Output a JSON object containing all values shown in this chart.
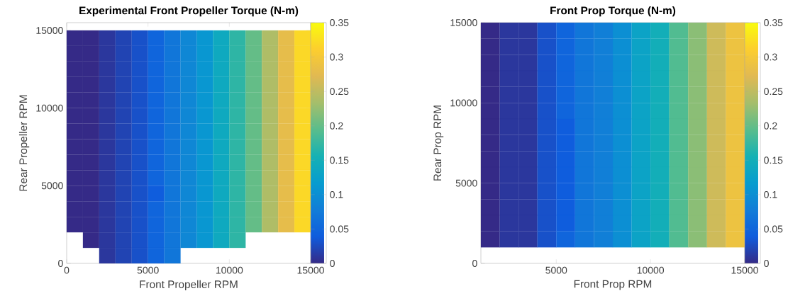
{
  "chart_data": [
    {
      "type": "scatter",
      "title": "Experimental Front Propeller Torque (N-m)",
      "xlabel": "Front Propeller RPM",
      "ylabel": "Rear Propeller RPM",
      "marker": "square",
      "x": [
        500,
        1500,
        2500,
        3500,
        4500,
        5500,
        6500,
        7500,
        8500,
        9500,
        10500,
        11500,
        12500,
        13500,
        14500,
        500,
        1500,
        2500,
        3500,
        4500,
        5500,
        6500,
        7500,
        8500,
        9500,
        10500,
        11500,
        12500,
        13500,
        14500,
        500,
        1500,
        2500,
        3500,
        4500,
        5500,
        6500,
        7500,
        8500,
        9500,
        10500,
        11500,
        12500,
        13500,
        14500,
        500,
        1500,
        2500,
        3500,
        4500,
        5500,
        6500,
        7500,
        8500,
        9500,
        10500,
        11500,
        12500,
        13500,
        14500,
        500,
        1500,
        2500,
        3500,
        4500,
        5500,
        6500,
        7500,
        8500,
        9500,
        10500,
        11500,
        12500,
        13500,
        14500,
        500,
        1500,
        2500,
        3500,
        4500,
        5500,
        6500,
        7500,
        8500,
        9500,
        10500,
        11500,
        12500,
        13500,
        14500,
        500,
        1500,
        2500,
        3500,
        4500,
        5500,
        6500,
        7500,
        8500,
        9500,
        10500,
        11500,
        12500,
        13500,
        14500,
        500,
        1500,
        2500,
        3500,
        4500,
        5500,
        6500,
        7500,
        8500,
        9500,
        10500,
        11500,
        12500,
        13500,
        14500,
        500,
        1500,
        2500,
        3500,
        4500,
        5500,
        6500,
        7500,
        8500,
        9500,
        10500,
        11500,
        12500,
        13500,
        14500,
        500,
        1500,
        2500,
        3500,
        4500,
        5500,
        6500,
        7500,
        8500,
        9500,
        10500,
        11500,
        12500,
        13500,
        14500,
        500,
        1500,
        2500,
        3500,
        4500,
        5500,
        6500,
        7500,
        8500,
        9500,
        10500,
        11500,
        12500,
        13500,
        14500,
        500,
        1500,
        2500,
        3500,
        4500,
        5500,
        6500,
        7500,
        8500,
        9500,
        10500,
        11500,
        12500,
        13500,
        14500,
        500,
        1500,
        2500,
        3500,
        4500,
        5500,
        6500,
        7500,
        8500,
        9500,
        10500,
        11500,
        12500,
        13500,
        14500,
        1500,
        2500,
        3500,
        4500,
        5500,
        6500,
        7500,
        8500,
        9500,
        10500,
        2500,
        3500,
        4500,
        5500,
        6500
      ],
      "values": [
        14500,
        14500,
        14500,
        14500,
        14500,
        14500,
        14500,
        14500,
        14500,
        14500,
        14500,
        14500,
        14500,
        14500,
        14500,
        13500,
        13500,
        13500,
        13500,
        13500,
        13500,
        13500,
        13500,
        13500,
        13500,
        13500,
        13500,
        13500,
        13500,
        13500,
        12500,
        12500,
        12500,
        12500,
        12500,
        12500,
        12500,
        12500,
        12500,
        12500,
        12500,
        12500,
        12500,
        12500,
        12500,
        11500,
        11500,
        11500,
        11500,
        11500,
        11500,
        11500,
        11500,
        11500,
        11500,
        11500,
        11500,
        11500,
        11500,
        11500,
        10500,
        10500,
        10500,
        10500,
        10500,
        10500,
        10500,
        10500,
        10500,
        10500,
        10500,
        10500,
        10500,
        10500,
        10500,
        9500,
        9500,
        9500,
        9500,
        9500,
        9500,
        9500,
        9500,
        9500,
        9500,
        9500,
        9500,
        9500,
        9500,
        9500,
        8500,
        8500,
        8500,
        8500,
        8500,
        8500,
        8500,
        8500,
        8500,
        8500,
        8500,
        8500,
        8500,
        8500,
        8500,
        7500,
        7500,
        7500,
        7500,
        7500,
        7500,
        7500,
        7500,
        7500,
        7500,
        7500,
        7500,
        7500,
        7500,
        7500,
        6500,
        6500,
        6500,
        6500,
        6500,
        6500,
        6500,
        6500,
        6500,
        6500,
        6500,
        6500,
        6500,
        6500,
        6500,
        5500,
        5500,
        5500,
        5500,
        5500,
        5500,
        5500,
        5500,
        5500,
        5500,
        5500,
        5500,
        5500,
        5500,
        5500,
        4500,
        4500,
        4500,
        4500,
        4500,
        4500,
        4500,
        4500,
        4500,
        4500,
        4500,
        4500,
        4500,
        4500,
        4500,
        3500,
        3500,
        3500,
        3500,
        3500,
        3500,
        3500,
        3500,
        3500,
        3500,
        3500,
        3500,
        3500,
        3500,
        3500,
        2500,
        2500,
        2500,
        2500,
        2500,
        2500,
        2500,
        2500,
        2500,
        2500,
        2500,
        2500,
        2500,
        2500,
        2500,
        1500,
        1500,
        1500,
        1500,
        1500,
        1500,
        1500,
        1500,
        1500,
        1500,
        500,
        500,
        500,
        500,
        500
      ],
      "cvalues": [
        0.0,
        0.0,
        0.01,
        0.02,
        0.03,
        0.05,
        0.07,
        0.09,
        0.11,
        0.14,
        0.17,
        0.2,
        0.24,
        0.28,
        0.32,
        0.0,
        0.0,
        0.01,
        0.02,
        0.03,
        0.05,
        0.07,
        0.09,
        0.11,
        0.14,
        0.17,
        0.2,
        0.24,
        0.28,
        0.32,
        0.0,
        0.0,
        0.01,
        0.02,
        0.03,
        0.05,
        0.07,
        0.09,
        0.11,
        0.14,
        0.17,
        0.2,
        0.24,
        0.28,
        0.32,
        0.0,
        0.0,
        0.01,
        0.02,
        0.03,
        0.05,
        0.07,
        0.09,
        0.11,
        0.14,
        0.17,
        0.2,
        0.24,
        0.28,
        0.32,
        0.0,
        0.0,
        0.01,
        0.02,
        0.03,
        0.05,
        0.07,
        0.09,
        0.11,
        0.14,
        0.17,
        0.2,
        0.24,
        0.28,
        0.32,
        0.0,
        0.0,
        0.01,
        0.02,
        0.03,
        0.05,
        0.07,
        0.09,
        0.11,
        0.14,
        0.17,
        0.2,
        0.24,
        0.28,
        0.32,
        0.0,
        0.0,
        0.01,
        0.02,
        0.03,
        0.05,
        0.07,
        0.09,
        0.11,
        0.14,
        0.17,
        0.2,
        0.24,
        0.28,
        0.32,
        0.0,
        0.0,
        0.01,
        0.02,
        0.03,
        0.05,
        0.07,
        0.09,
        0.11,
        0.14,
        0.17,
        0.2,
        0.24,
        0.28,
        0.32,
        0.0,
        0.0,
        0.01,
        0.02,
        0.03,
        0.05,
        0.07,
        0.09,
        0.11,
        0.14,
        0.17,
        0.2,
        0.24,
        0.28,
        0.32,
        0.0,
        0.0,
        0.01,
        0.02,
        0.03,
        0.05,
        0.07,
        0.09,
        0.11,
        0.14,
        0.17,
        0.2,
        0.24,
        0.28,
        0.32,
        0.0,
        0.0,
        0.01,
        0.02,
        0.03,
        0.04,
        0.07,
        0.09,
        0.11,
        0.14,
        0.17,
        0.2,
        0.24,
        0.28,
        0.32,
        0.0,
        0.0,
        0.01,
        0.02,
        0.03,
        0.05,
        0.07,
        0.09,
        0.11,
        0.14,
        0.17,
        0.2,
        0.24,
        0.28,
        0.32,
        0.0,
        0.0,
        0.01,
        0.02,
        0.03,
        0.05,
        0.07,
        0.09,
        0.11,
        0.14,
        0.17,
        0.2,
        0.24,
        0.28,
        0.32,
        0.0,
        0.01,
        0.02,
        0.03,
        0.05,
        0.07,
        0.09,
        0.11,
        0.14,
        0.17,
        0.01,
        0.02,
        0.03,
        0.05,
        0.07
      ],
      "xlim": [
        0,
        15000
      ],
      "ylim": [
        0,
        15500
      ],
      "xticks": [
        0,
        5000,
        10000,
        15000
      ],
      "yticks": [
        0,
        5000,
        10000,
        15000
      ],
      "clim": [
        0,
        0.35
      ],
      "cticks": [
        0,
        0.05,
        0.1,
        0.15,
        0.2,
        0.25,
        0.3,
        0.35
      ]
    },
    {
      "type": "scatter",
      "title": "Front Prop Torque (N-m)",
      "xlabel": "Front Prop RPM",
      "ylabel": "Rear Prop RPM",
      "marker": "square",
      "x": [
        1500,
        2500,
        3500,
        4500,
        5500,
        6500,
        7500,
        8500,
        9500,
        10500,
        11500,
        12500,
        13500,
        14500,
        1500,
        2500,
        3500,
        4500,
        5500,
        6500,
        7500,
        8500,
        9500,
        10500,
        11500,
        12500,
        13500,
        14500,
        1500,
        2500,
        3500,
        4500,
        5500,
        6500,
        7500,
        8500,
        9500,
        10500,
        11500,
        12500,
        13500,
        14500,
        1500,
        2500,
        3500,
        4500,
        5500,
        6500,
        7500,
        8500,
        9500,
        10500,
        11500,
        12500,
        13500,
        14500,
        1500,
        2500,
        3500,
        4500,
        5500,
        6500,
        7500,
        8500,
        9500,
        10500,
        11500,
        12500,
        13500,
        14500,
        1500,
        2500,
        3500,
        4500,
        5500,
        6500,
        7500,
        8500,
        9500,
        10500,
        11500,
        12500,
        13500,
        14500,
        1500,
        2500,
        3500,
        4500,
        5500,
        6500,
        7500,
        8500,
        9500,
        10500,
        11500,
        12500,
        13500,
        14500,
        1500,
        2500,
        3500,
        4500,
        5500,
        6500,
        7500,
        8500,
        9500,
        10500,
        11500,
        12500,
        13500,
        14500,
        1500,
        2500,
        3500,
        4500,
        5500,
        6500,
        7500,
        8500,
        9500,
        10500,
        11500,
        12500,
        13500,
        14500,
        1500,
        2500,
        3500,
        4500,
        5500,
        6500,
        7500,
        8500,
        9500,
        10500,
        11500,
        12500,
        13500,
        14500,
        1500,
        2500,
        3500,
        4500,
        5500,
        6500,
        7500,
        8500,
        9500,
        10500,
        11500,
        12500,
        13500,
        14500,
        1500,
        2500,
        3500,
        4500,
        5500,
        6500,
        7500,
        8500,
        9500,
        10500,
        11500,
        12500,
        13500,
        14500,
        1500,
        2500,
        3500,
        4500,
        5500,
        6500,
        7500,
        8500,
        9500,
        10500,
        11500,
        12500,
        13500,
        14500,
        1500,
        2500,
        3500,
        4500,
        5500,
        6500,
        7500,
        8500,
        9500,
        10500,
        11500,
        12500,
        13500,
        14500
      ],
      "values": [
        14500,
        14500,
        14500,
        14500,
        14500,
        14500,
        14500,
        14500,
        14500,
        14500,
        14500,
        14500,
        14500,
        14500,
        13500,
        13500,
        13500,
        13500,
        13500,
        13500,
        13500,
        13500,
        13500,
        13500,
        13500,
        13500,
        13500,
        13500,
        12500,
        12500,
        12500,
        12500,
        12500,
        12500,
        12500,
        12500,
        12500,
        12500,
        12500,
        12500,
        12500,
        12500,
        11500,
        11500,
        11500,
        11500,
        11500,
        11500,
        11500,
        11500,
        11500,
        11500,
        11500,
        11500,
        11500,
        11500,
        10500,
        10500,
        10500,
        10500,
        10500,
        10500,
        10500,
        10500,
        10500,
        10500,
        10500,
        10500,
        10500,
        10500,
        9500,
        9500,
        9500,
        9500,
        9500,
        9500,
        9500,
        9500,
        9500,
        9500,
        9500,
        9500,
        9500,
        9500,
        8500,
        8500,
        8500,
        8500,
        8500,
        8500,
        8500,
        8500,
        8500,
        8500,
        8500,
        8500,
        8500,
        8500,
        7500,
        7500,
        7500,
        7500,
        7500,
        7500,
        7500,
        7500,
        7500,
        7500,
        7500,
        7500,
        7500,
        7500,
        6500,
        6500,
        6500,
        6500,
        6500,
        6500,
        6500,
        6500,
        6500,
        6500,
        6500,
        6500,
        6500,
        6500,
        5500,
        5500,
        5500,
        5500,
        5500,
        5500,
        5500,
        5500,
        5500,
        5500,
        5500,
        5500,
        5500,
        5500,
        4500,
        4500,
        4500,
        4500,
        4500,
        4500,
        4500,
        4500,
        4500,
        4500,
        4500,
        4500,
        4500,
        4500,
        3500,
        3500,
        3500,
        3500,
        3500,
        3500,
        3500,
        3500,
        3500,
        3500,
        3500,
        3500,
        3500,
        3500,
        2500,
        2500,
        2500,
        2500,
        2500,
        2500,
        2500,
        2500,
        2500,
        2500,
        2500,
        2500,
        2500,
        2500,
        1500,
        1500,
        1500,
        1500,
        1500,
        1500,
        1500,
        1500,
        1500,
        1500,
        1500,
        1500,
        1500,
        1500
      ],
      "cvalues": [
        0.0,
        0.01,
        0.01,
        0.03,
        0.05,
        0.07,
        0.08,
        0.1,
        0.13,
        0.15,
        0.19,
        0.22,
        0.26,
        0.29,
        0.0,
        0.01,
        0.01,
        0.03,
        0.05,
        0.07,
        0.08,
        0.1,
        0.13,
        0.15,
        0.19,
        0.22,
        0.26,
        0.29,
        0.0,
        0.01,
        0.01,
        0.03,
        0.05,
        0.07,
        0.08,
        0.1,
        0.13,
        0.15,
        0.19,
        0.22,
        0.26,
        0.29,
        0.0,
        0.01,
        0.01,
        0.03,
        0.05,
        0.07,
        0.08,
        0.1,
        0.13,
        0.15,
        0.19,
        0.22,
        0.26,
        0.29,
        0.0,
        0.01,
        0.01,
        0.03,
        0.05,
        0.07,
        0.08,
        0.1,
        0.13,
        0.15,
        0.19,
        0.22,
        0.26,
        0.29,
        0.0,
        0.01,
        0.01,
        0.03,
        0.05,
        0.07,
        0.08,
        0.1,
        0.13,
        0.15,
        0.19,
        0.22,
        0.26,
        0.29,
        0.0,
        0.01,
        0.01,
        0.03,
        0.04,
        0.07,
        0.08,
        0.1,
        0.13,
        0.15,
        0.19,
        0.22,
        0.26,
        0.29,
        0.0,
        0.01,
        0.01,
        0.03,
        0.04,
        0.07,
        0.08,
        0.1,
        0.13,
        0.15,
        0.19,
        0.22,
        0.26,
        0.29,
        0.0,
        0.01,
        0.01,
        0.03,
        0.04,
        0.07,
        0.08,
        0.1,
        0.13,
        0.15,
        0.19,
        0.22,
        0.26,
        0.29,
        0.0,
        0.01,
        0.01,
        0.03,
        0.04,
        0.07,
        0.08,
        0.1,
        0.13,
        0.15,
        0.19,
        0.22,
        0.26,
        0.29,
        0.0,
        0.01,
        0.01,
        0.03,
        0.04,
        0.07,
        0.08,
        0.1,
        0.13,
        0.15,
        0.19,
        0.22,
        0.26,
        0.29,
        0.0,
        0.01,
        0.01,
        0.03,
        0.04,
        0.07,
        0.08,
        0.1,
        0.13,
        0.15,
        0.19,
        0.22,
        0.26,
        0.29,
        0.0,
        0.01,
        0.01,
        0.03,
        0.04,
        0.07,
        0.08,
        0.1,
        0.13,
        0.15,
        0.19,
        0.22,
        0.26,
        0.29,
        0.0,
        0.01,
        0.01,
        0.03,
        0.05,
        0.07,
        0.08,
        0.1,
        0.13,
        0.15,
        0.19,
        0.22,
        0.26,
        0.29
      ],
      "xlim": [
        1000,
        15000
      ],
      "ylim": [
        0,
        15000
      ],
      "xticks": [
        5000,
        10000,
        15000
      ],
      "yticks": [
        0,
        5000,
        10000,
        15000
      ],
      "clim": [
        0,
        0.35
      ],
      "cticks": [
        0,
        0.05,
        0.1,
        0.15,
        0.2,
        0.25,
        0.3,
        0.35
      ]
    }
  ]
}
